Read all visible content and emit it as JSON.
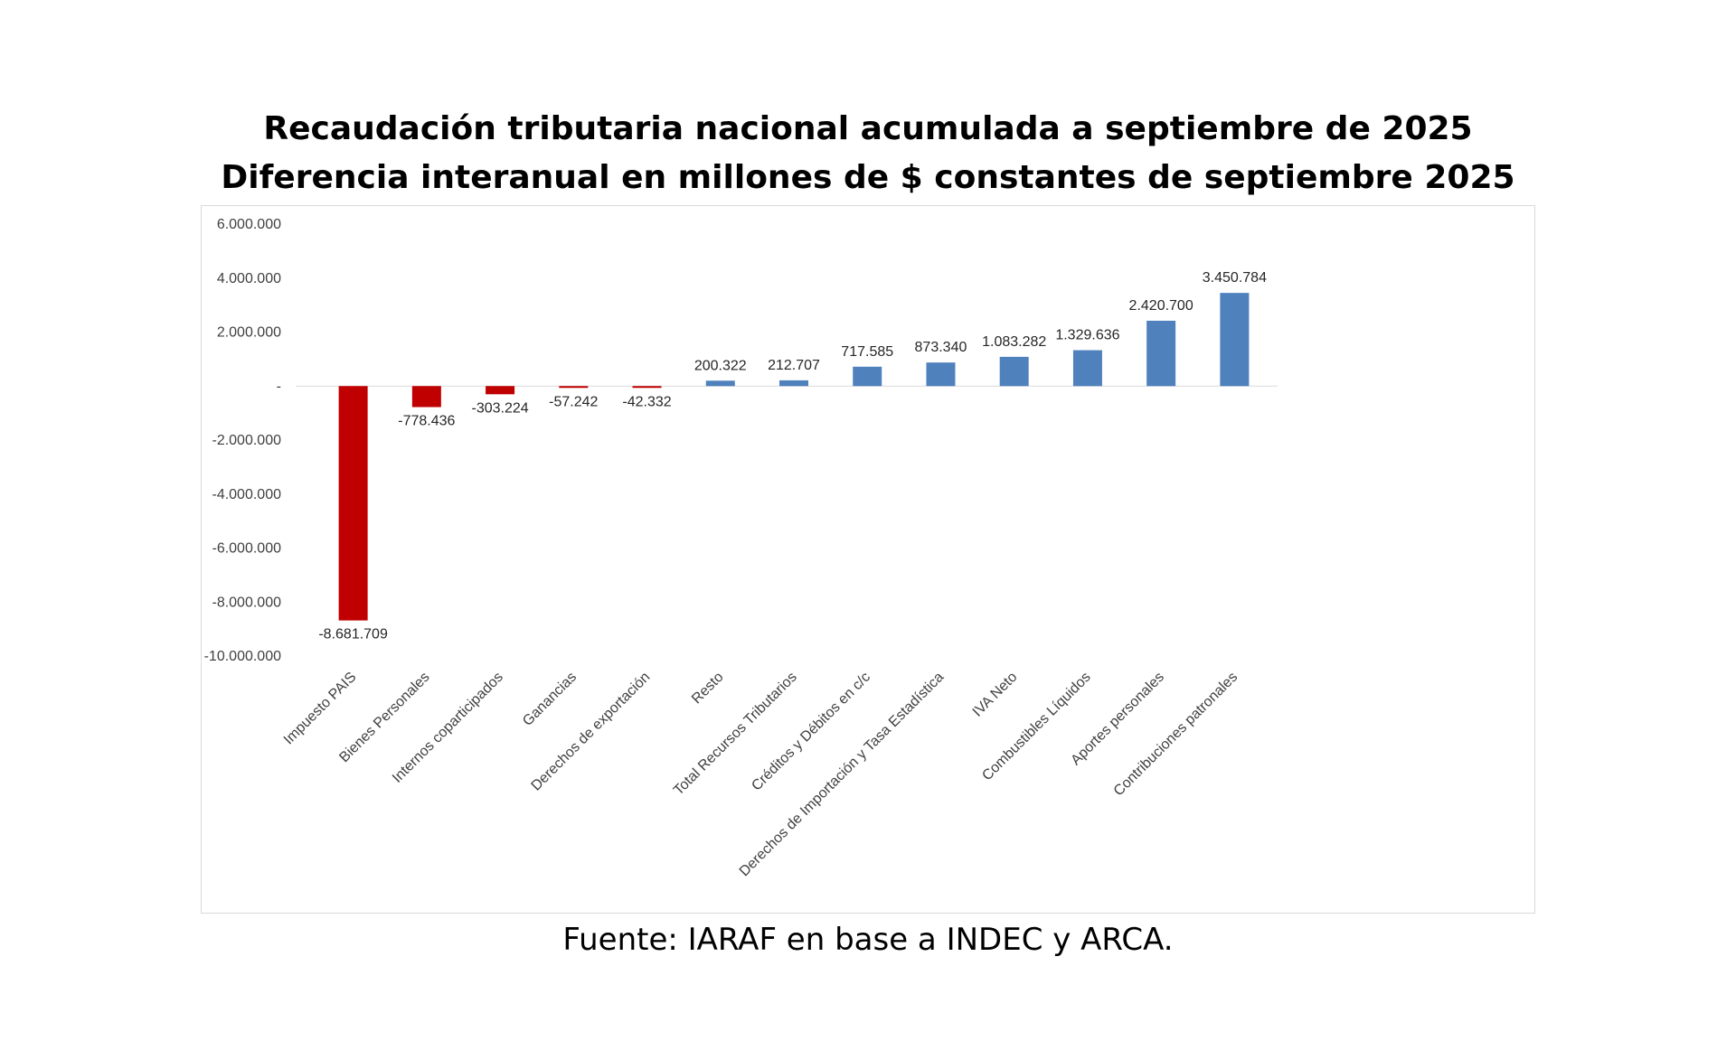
{
  "titles": {
    "line1": "Recaudación tributaria nacional acumulada a septiembre de 2025",
    "line2": "Diferencia interanual en millones de $ constantes de septiembre 2025"
  },
  "source": "Fuente: IARAF en base a INDEC y ARCA.",
  "colors": {
    "negative": "#c00000",
    "positive": "#4f81bd",
    "axis": "#d9d9d9",
    "text": "#404040"
  },
  "chart_data": {
    "type": "bar",
    "title": "Recaudación tributaria nacional acumulada a septiembre de 2025 — Diferencia interanual en millones de $ constantes de septiembre 2025",
    "xlabel": "",
    "ylabel": "",
    "ylim": [
      -10000000,
      6000000
    ],
    "yticks": [
      {
        "value": 6000000,
        "label": "6.000.000"
      },
      {
        "value": 4000000,
        "label": "4.000.000"
      },
      {
        "value": 2000000,
        "label": "2.000.000"
      },
      {
        "value": 0,
        "label": "-"
      },
      {
        "value": -2000000,
        "label": "-2.000.000"
      },
      {
        "value": -4000000,
        "label": "-4.000.000"
      },
      {
        "value": -6000000,
        "label": "-6.000.000"
      },
      {
        "value": -8000000,
        "label": "-8.000.000"
      },
      {
        "value": -10000000,
        "label": "-10.000.000"
      }
    ],
    "categories": [
      "Impuesto PAIS",
      "Bienes Personales",
      "Internos coparticipados",
      "Ganancias",
      "Derechos de exportación",
      "Resto",
      "Total Recursos Tributarios",
      "Créditos y Débitos en c/c",
      "Derechos de Importación y Tasa Estadística",
      "IVA Neto",
      "Combustibles Líquidos",
      "Aportes personales",
      "Contribuciones patronales"
    ],
    "values": [
      -8681709,
      -778436,
      -303224,
      -57242,
      -42332,
      200322,
      212707,
      717585,
      873340,
      1083282,
      1329636,
      2420700,
      3450784
    ],
    "value_labels": [
      "-8.681.709",
      "-778.436",
      "-303.224",
      "-57.242",
      "-42.332",
      "200.322",
      "212.707",
      "717.585",
      "873.340",
      "1.083.282",
      "1.329.636",
      "2.420.700",
      "3.450.784"
    ]
  }
}
